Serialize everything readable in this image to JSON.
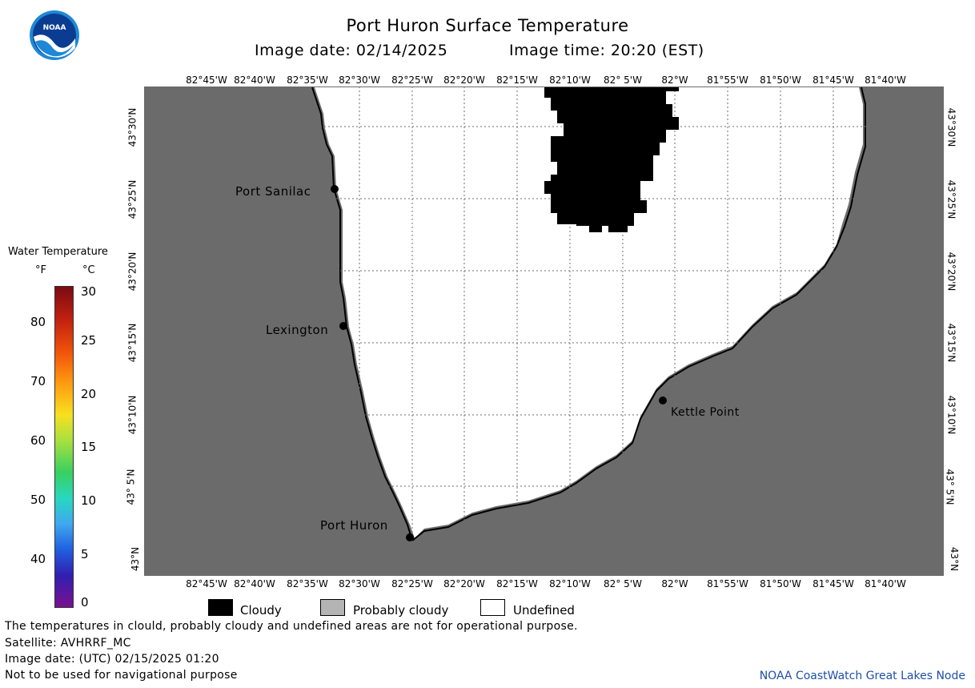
{
  "header": {
    "title": "Port Huron Surface Temperature",
    "image_date": "Image date: 02/14/2025",
    "image_time": "Image time: 20:20 (EST)",
    "logo_text": "NOAA"
  },
  "map": {
    "lon_labels": [
      "82°45'W",
      "82°40'W",
      "82°35'W",
      "82°30'W",
      "82°25'W",
      "82°20'W",
      "82°15'W",
      "82°10'W",
      "82° 5'W",
      "82°W",
      "81°55'W",
      "81°50'W",
      "81°45'W",
      "81°40'W"
    ],
    "lat_labels": [
      "43°30'N",
      "43°25'N",
      "43°20'N",
      "43°15'N",
      "43°10'N",
      "43° 5'N",
      "43°N"
    ],
    "places": [
      {
        "name": "Port Sanilac"
      },
      {
        "name": "Lexington"
      },
      {
        "name": "Kettle Point"
      },
      {
        "name": "Port Huron"
      }
    ],
    "colors": {
      "land": "#6b6b6b",
      "undefined": "#ffffff",
      "cloudy": "#000000",
      "probably_cloudy": "#b4b4b4"
    }
  },
  "legend": {
    "title": "Water Temperature",
    "unit_f": "°F",
    "unit_c": "°C",
    "f_ticks": [
      "80",
      "70",
      "60",
      "50",
      "40"
    ],
    "c_ticks": [
      "30",
      "25",
      "20",
      "15",
      "10",
      "5",
      "0"
    ]
  },
  "key": {
    "cloudy": "Cloudy",
    "probably_cloudy": "Probably cloudy",
    "undefined": "Undefined"
  },
  "footer": {
    "line1": "The temperatures in clould, probably cloudy and undefined areas are not for operational purpose.",
    "line2": "Satellite: AVHRRF_MC",
    "line3": "Image date: (UTC) 02/15/2025  01:20",
    "line4": "Not to be used for navigational purpose",
    "credit": "NOAA CoastWatch Great Lakes Node"
  }
}
